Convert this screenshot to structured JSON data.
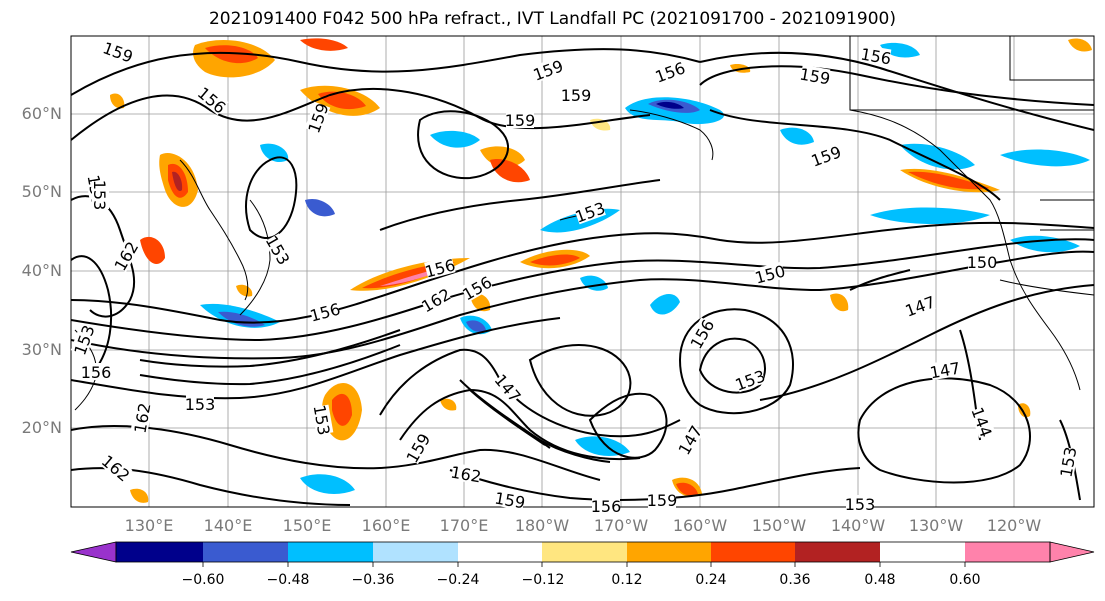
{
  "title": "2021091400 F042 500 hPa refract., IVT Landfall PC (2021091700 - 2021091900)",
  "lat_labels": [
    "60°N",
    "50°N",
    "40°N",
    "30°N",
    "20°N"
  ],
  "lon_labels": [
    "130°E",
    "140°E",
    "150°E",
    "160°E",
    "170°E",
    "180°W",
    "170°W",
    "160°W",
    "150°W",
    "140°W",
    "130°W",
    "120°W"
  ],
  "contour_labels": [
    "159",
    "156",
    "159",
    "159",
    "159",
    "156",
    "159",
    "156",
    "159",
    "159",
    "156",
    "153",
    "162",
    "156",
    "153",
    "156",
    "162",
    "156",
    "150",
    "150",
    "147",
    "147",
    "153",
    "156",
    "144",
    "153",
    "147",
    "162",
    "153",
    "159",
    "162",
    "159",
    "156",
    "153",
    "147",
    "153",
    "162",
    "153",
    "153",
    "156",
    "159"
  ],
  "colorbar": {
    "ticks": [
      "−0.60",
      "−0.48",
      "−0.36",
      "−0.24",
      "−0.12",
      "0.12",
      "0.24",
      "0.36",
      "0.48",
      "0.60"
    ],
    "colors": [
      "#9932cc",
      "#00008b",
      "#3a5bd0",
      "#00bfff",
      "#b0e2ff",
      "#ffffff",
      "#ffe680",
      "#ffa500",
      "#ff4500",
      "#b22222",
      "#ff82ab"
    ]
  }
}
